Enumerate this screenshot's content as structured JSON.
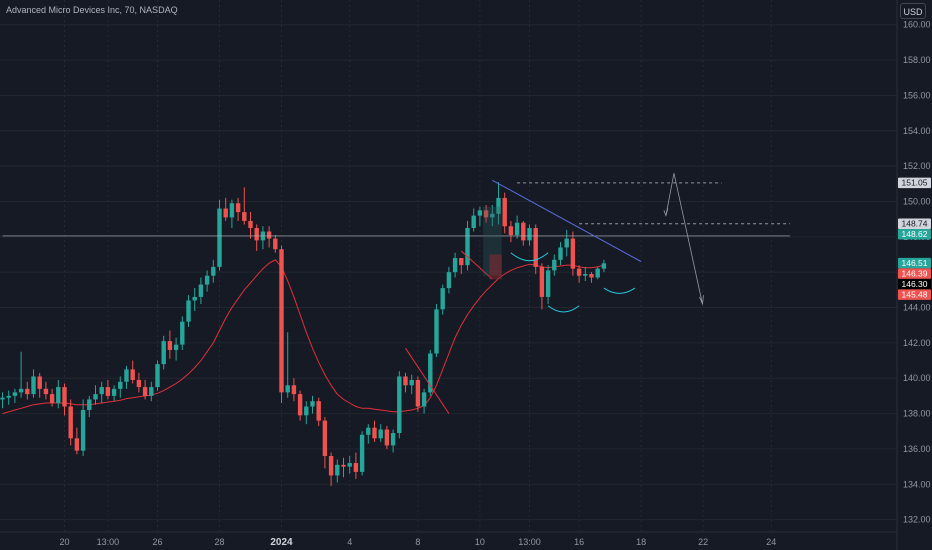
{
  "header": {
    "title": "Advanced Micro Devices Inc, 70, NASDAQ",
    "currency": "USD"
  },
  "colors": {
    "background": "#161a25",
    "up": "#26a69a",
    "down": "#ef5350",
    "ma": "#e0303a",
    "trendline": "#5b6ee1",
    "grid": "#22262f"
  },
  "chart_data": {
    "type": "candlestick",
    "ylim": [
      131.3,
      161.4
    ],
    "y_ticks": [
      "132.00",
      "134.00",
      "136.00",
      "138.00",
      "140.00",
      "142.00",
      "144.00",
      "146.00",
      "148.00",
      "150.00",
      "152.00",
      "154.00",
      "156.00",
      "158.00",
      "160.00"
    ],
    "x_ticks": [
      {
        "label": "20",
        "bar": 10,
        "bold": false
      },
      {
        "label": "13:00",
        "bar": 17,
        "bold": false
      },
      {
        "label": "26",
        "bar": 25,
        "bold": false
      },
      {
        "label": "28",
        "bar": 35,
        "bold": false
      },
      {
        "label": "2024",
        "bar": 45,
        "bold": true
      },
      {
        "label": "4",
        "bar": 56,
        "bold": false
      },
      {
        "label": "8",
        "bar": 67,
        "bold": false
      },
      {
        "label": "10",
        "bar": 77,
        "bold": false
      },
      {
        "label": "13:00",
        "bar": 85,
        "bold": false
      },
      {
        "label": "16",
        "bar": 93,
        "bold": false
      },
      {
        "label": "18",
        "bar": 103,
        "bold": false
      },
      {
        "label": "22",
        "bar": 113,
        "bold": false
      },
      {
        "label": "24",
        "bar": 124,
        "bold": false
      }
    ],
    "candles": [
      [
        138.8,
        139.2,
        138.3,
        138.9
      ],
      [
        138.9,
        139.3,
        138.5,
        139.0
      ],
      [
        139.0,
        139.4,
        138.6,
        139.2
      ],
      [
        139.2,
        141.5,
        138.9,
        139.4
      ],
      [
        139.4,
        139.8,
        138.8,
        139.1
      ],
      [
        139.1,
        140.5,
        138.9,
        140.1
      ],
      [
        140.1,
        140.3,
        138.9,
        139.4
      ],
      [
        139.4,
        139.8,
        138.8,
        139.1
      ],
      [
        139.1,
        139.4,
        138.4,
        138.6
      ],
      [
        138.6,
        139.9,
        138.3,
        139.5
      ],
      [
        139.5,
        139.7,
        137.9,
        138.4
      ],
      [
        138.4,
        138.8,
        136.2,
        136.6
      ],
      [
        136.6,
        137.2,
        135.7,
        135.9
      ],
      [
        135.9,
        138.8,
        135.6,
        138.2
      ],
      [
        138.2,
        139.0,
        137.8,
        138.8
      ],
      [
        138.8,
        139.6,
        138.5,
        139.1
      ],
      [
        139.1,
        139.8,
        138.6,
        139.5
      ],
      [
        139.5,
        139.9,
        138.8,
        139.0
      ],
      [
        139.0,
        139.6,
        138.7,
        139.4
      ],
      [
        139.4,
        140.1,
        138.9,
        139.8
      ],
      [
        139.8,
        140.7,
        139.4,
        140.5
      ],
      [
        140.5,
        141.0,
        139.7,
        139.9
      ],
      [
        139.9,
        140.3,
        139.2,
        139.5
      ],
      [
        139.5,
        139.9,
        138.8,
        139.0
      ],
      [
        139.0,
        139.8,
        138.7,
        139.5
      ],
      [
        139.5,
        141.0,
        139.3,
        140.8
      ],
      [
        140.8,
        142.4,
        140.5,
        142.1
      ],
      [
        142.1,
        142.7,
        141.1,
        141.6
      ],
      [
        141.6,
        142.3,
        141.0,
        141.9
      ],
      [
        141.9,
        143.5,
        141.6,
        143.2
      ],
      [
        143.2,
        144.7,
        142.9,
        144.4
      ],
      [
        144.4,
        145.1,
        143.8,
        144.6
      ],
      [
        144.6,
        145.7,
        144.2,
        145.3
      ],
      [
        145.3,
        146.1,
        144.9,
        145.8
      ],
      [
        145.8,
        146.7,
        145.4,
        146.3
      ],
      [
        146.3,
        150.1,
        146.1,
        149.6
      ],
      [
        149.6,
        150.2,
        148.9,
        149.1
      ],
      [
        149.1,
        150.1,
        148.5,
        149.9
      ],
      [
        149.9,
        150.2,
        148.9,
        149.4
      ],
      [
        149.4,
        150.8,
        148.7,
        148.9
      ],
      [
        148.9,
        149.4,
        147.9,
        148.5
      ],
      [
        148.5,
        148.7,
        147.2,
        147.8
      ],
      [
        147.8,
        148.6,
        147.3,
        148.3
      ],
      [
        148.3,
        148.6,
        147.4,
        147.9
      ],
      [
        147.9,
        148.1,
        147.1,
        147.3
      ],
      [
        147.3,
        147.5,
        138.6,
        139.2
      ],
      [
        139.2,
        142.6,
        138.9,
        139.6
      ],
      [
        139.6,
        140.0,
        138.7,
        139.1
      ],
      [
        139.1,
        139.3,
        137.6,
        137.9
      ],
      [
        137.9,
        138.7,
        137.4,
        138.4
      ],
      [
        138.4,
        139.0,
        138.0,
        138.7
      ],
      [
        138.7,
        138.9,
        137.3,
        137.6
      ],
      [
        137.6,
        137.8,
        134.9,
        135.6
      ],
      [
        135.6,
        135.8,
        133.9,
        134.5
      ],
      [
        134.5,
        135.4,
        134.1,
        135.1
      ],
      [
        135.1,
        135.5,
        134.4,
        135.0
      ],
      [
        135.0,
        135.6,
        134.6,
        135.2
      ],
      [
        135.2,
        135.8,
        134.3,
        134.7
      ],
      [
        134.7,
        137.0,
        134.5,
        136.8
      ],
      [
        136.8,
        137.4,
        136.3,
        137.2
      ],
      [
        137.2,
        137.6,
        136.4,
        136.6
      ],
      [
        136.6,
        137.4,
        136.4,
        137.1
      ],
      [
        137.1,
        137.3,
        136.0,
        136.2
      ],
      [
        136.2,
        137.1,
        135.8,
        136.9
      ],
      [
        136.9,
        140.4,
        136.6,
        140.1
      ],
      [
        140.1,
        140.3,
        139.2,
        139.6
      ],
      [
        139.6,
        140.2,
        139.1,
        139.9
      ],
      [
        139.9,
        140.1,
        138.1,
        138.4
      ],
      [
        138.4,
        139.4,
        138.0,
        139.2
      ],
      [
        139.2,
        141.6,
        139.0,
        141.4
      ],
      [
        141.4,
        144.2,
        141.2,
        143.9
      ],
      [
        143.9,
        145.3,
        143.6,
        145.1
      ],
      [
        145.1,
        146.3,
        144.8,
        146.0
      ],
      [
        146.0,
        147.1,
        145.7,
        146.8
      ],
      [
        146.8,
        146.8,
        145.9,
        146.4
      ],
      [
        146.4,
        148.9,
        146.1,
        148.5
      ],
      [
        148.5,
        149.6,
        148.3,
        149.2
      ],
      [
        149.2,
        149.7,
        148.6,
        149.5
      ],
      [
        149.5,
        149.8,
        148.8,
        149.1
      ],
      [
        149.1,
        149.8,
        148.6,
        149.3
      ],
      [
        149.3,
        151.1,
        148.7,
        150.2
      ],
      [
        150.2,
        150.5,
        148.2,
        148.6
      ],
      [
        148.6,
        148.9,
        147.7,
        148.1
      ],
      [
        148.1,
        149.2,
        147.9,
        148.8
      ],
      [
        148.8,
        148.9,
        147.5,
        147.8
      ],
      [
        147.8,
        148.7,
        147.5,
        148.5
      ],
      [
        148.5,
        148.7,
        145.9,
        146.3
      ],
      [
        146.3,
        146.5,
        143.9,
        144.6
      ],
      [
        144.6,
        146.4,
        144.2,
        146.1
      ],
      [
        146.1,
        147.0,
        145.8,
        146.7
      ],
      [
        146.7,
        147.7,
        146.4,
        147.4
      ],
      [
        147.4,
        148.4,
        146.9,
        147.9
      ],
      [
        147.9,
        148.3,
        145.8,
        146.2
      ],
      [
        146.2,
        146.4,
        145.4,
        145.8
      ],
      [
        145.8,
        146.3,
        145.5,
        145.9
      ],
      [
        145.9,
        146.0,
        145.4,
        145.7
      ],
      [
        145.7,
        146.3,
        145.6,
        146.2
      ],
      [
        146.2,
        146.7,
        146.0,
        146.5
      ]
    ],
    "moving_average": [
      138.0,
      138.1,
      138.2,
      138.3,
      138.4,
      138.5,
      138.55,
      138.6,
      138.6,
      138.6,
      138.6,
      138.55,
      138.5,
      138.5,
      138.5,
      138.55,
      138.6,
      138.65,
      138.7,
      138.75,
      138.85,
      138.9,
      138.95,
      139.0,
      139.05,
      139.15,
      139.3,
      139.5,
      139.7,
      139.95,
      140.25,
      140.6,
      141.0,
      141.5,
      142.0,
      142.7,
      143.4,
      144.0,
      144.5,
      145.0,
      145.4,
      145.8,
      146.2,
      146.5,
      146.7,
      146.3,
      145.5,
      144.6,
      143.6,
      142.6,
      141.7,
      140.9,
      140.2,
      139.6,
      139.1,
      138.8,
      138.6,
      138.4,
      138.3,
      138.3,
      138.25,
      138.2,
      138.15,
      138.1,
      138.1,
      138.15,
      138.2,
      138.3,
      138.45,
      138.9,
      139.6,
      140.5,
      141.4,
      142.3,
      143.0,
      143.6,
      144.1,
      144.55,
      144.95,
      145.3,
      145.65,
      145.9,
      146.1,
      146.25,
      146.35,
      146.45,
      146.4,
      146.3,
      146.25,
      146.3,
      146.35,
      146.4,
      146.4,
      146.3,
      146.25,
      146.25,
      146.3,
      146.4
    ],
    "trendlines": [
      {
        "kind": "resistance",
        "from": [
          83,
          151.05
        ],
        "to": [
          116,
          151.05
        ]
      },
      {
        "kind": "level",
        "from": [
          93,
          148.74
        ],
        "to": [
          127,
          148.74
        ]
      },
      {
        "kind": "level",
        "from": [
          0,
          148.05
        ],
        "to": [
          127,
          148.05
        ]
      },
      {
        "kind": "descending",
        "from": [
          79,
          151.2
        ],
        "to": [
          103,
          146.6
        ]
      },
      {
        "kind": "breakout",
        "from": [
          65,
          141.7
        ],
        "to": [
          72,
          138.0
        ]
      },
      {
        "kind": "breakout",
        "from": [
          74,
          147.2
        ],
        "to": [
          79,
          145.6
        ]
      }
    ],
    "price_labels": [
      {
        "text": "151.05",
        "value": 151.05,
        "style": "neutral"
      },
      {
        "text": "148.74",
        "value": 148.74,
        "style": "neutral"
      },
      {
        "text": "148.62",
        "value": 148.62,
        "style": "up"
      },
      {
        "text": "146.51",
        "value": 146.51,
        "style": "up"
      },
      {
        "text": "146.39",
        "value": 146.39,
        "style": "down"
      },
      {
        "text": "146.30",
        "value": 146.3,
        "style": "dark"
      },
      {
        "text": "145.48",
        "value": 145.48,
        "style": "down"
      }
    ]
  }
}
